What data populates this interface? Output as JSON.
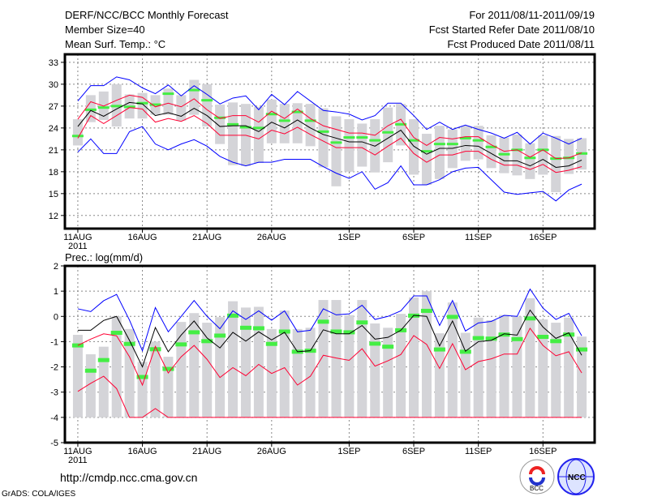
{
  "header": {
    "title": "DERF/NCC/BCC Monthly Forecast",
    "member_size": "Member Size=40",
    "variable": "Mean Surf. Temp.: °C",
    "period": "For 2011/08/11-2011/09/19",
    "started": "Fcst Started Refer Date 2011/08/10",
    "produced": "Fcst Produced Date 2011/08/11"
  },
  "footer": {
    "url": "http://cmdp.ncc.cma.gov.cn",
    "credit": "GrADS: COLA/IGES",
    "logo_bcc": "BCC",
    "logo_ncc": "NCC"
  },
  "colors": {
    "max_min": "#0000ff",
    "spread": "#ff0033",
    "mean": "#000000",
    "obs": "#44ee44",
    "range": "#d4d4d8"
  },
  "chart_data": [
    {
      "type": "line",
      "title": "Mean Surf. Temp.: °C",
      "x_tick_labels": [
        {
          "day": 0,
          "label": "11AUG"
        },
        {
          "day": 5,
          "label": "16AUG"
        },
        {
          "day": 10,
          "label": "21AUG"
        },
        {
          "day": 15,
          "label": "26AUG"
        },
        {
          "day": 21,
          "label": "1SEP"
        },
        {
          "day": 26,
          "label": "6SEP"
        },
        {
          "day": 31,
          "label": "11SEP"
        },
        {
          "day": 36,
          "label": "16SEP"
        }
      ],
      "year_label": "2011",
      "xlim": [
        -1,
        40
      ],
      "ylim": [
        10.2,
        34.1
      ],
      "y_ticks": [
        33,
        30,
        27,
        24,
        21,
        18,
        15,
        12
      ],
      "grid": true,
      "series": {
        "max": [
          27.7,
          29.8,
          29.8,
          31.0,
          30.6,
          29.5,
          28.7,
          29.9,
          28.4,
          29.8,
          28.6,
          27.3,
          28.1,
          28.4,
          26.5,
          28.6,
          27.2,
          29.0,
          27.7,
          26.4,
          26.2,
          25.9,
          25.1,
          25.7,
          27.4,
          27.4,
          25.7,
          23.8,
          24.8,
          23.8,
          24.4,
          23.8,
          23.3,
          22.6,
          23.4,
          21.8,
          23.3,
          22.6,
          21.8,
          22.6
        ],
        "upper": [
          25.2,
          27.6,
          27.0,
          27.8,
          28.5,
          28.2,
          26.9,
          27.4,
          26.9,
          28.0,
          26.5,
          25.3,
          25.7,
          25.7,
          24.8,
          26.3,
          25.3,
          26.6,
          25.3,
          24.3,
          23.8,
          23.3,
          23.3,
          23.0,
          24.3,
          25.2,
          22.7,
          21.6,
          22.7,
          22.5,
          22.8,
          22.8,
          21.7,
          20.8,
          21.0,
          20.0,
          21.0,
          19.8,
          19.9,
          20.6
        ],
        "mean": [
          24.2,
          26.4,
          25.6,
          26.6,
          27.5,
          27.3,
          25.7,
          26.1,
          25.6,
          26.7,
          25.7,
          24.2,
          24.3,
          24.3,
          23.5,
          24.8,
          24.0,
          25.1,
          24.0,
          23.1,
          22.6,
          22.1,
          22.1,
          21.5,
          22.6,
          23.7,
          21.5,
          20.4,
          21.2,
          21.2,
          21.6,
          21.5,
          20.5,
          19.5,
          19.5,
          18.8,
          19.7,
          18.6,
          18.8,
          19.6
        ],
        "lower": [
          22.6,
          25.7,
          24.6,
          25.7,
          26.8,
          26.6,
          24.8,
          25.3,
          24.9,
          25.7,
          24.6,
          23.0,
          23.0,
          23.0,
          22.5,
          23.7,
          23.2,
          24.1,
          23.1,
          22.2,
          21.3,
          21.3,
          21.3,
          20.3,
          21.5,
          22.6,
          20.5,
          19.3,
          20.3,
          20.3,
          20.8,
          20.8,
          19.7,
          18.9,
          18.9,
          18.3,
          19.0,
          17.9,
          18.2,
          18.7
        ],
        "min": [
          20.7,
          22.5,
          20.5,
          20.5,
          23.5,
          24.2,
          21.8,
          21.0,
          21.8,
          22.4,
          21.5,
          20.1,
          19.3,
          18.8,
          19.3,
          19.3,
          19.7,
          19.7,
          19.7,
          18.7,
          17.8,
          17.1,
          18.0,
          15.6,
          16.5,
          18.8,
          16.2,
          16.2,
          16.9,
          18.0,
          18.5,
          18.6,
          16.9,
          15.2,
          14.9,
          15.1,
          15.3,
          14.0,
          15.5,
          16.3
        ],
        "obs": [
          22.9,
          26.5,
          26.8,
          27.0,
          26.9,
          27.4,
          27.2,
          28.7,
          null,
          29.2,
          27.8,
          25.4,
          24.5,
          24.1,
          24.0,
          25.9,
          25.0,
          26.2,
          25.0,
          23.5,
          22.0,
          22.7,
          22.7,
          22.3,
          23.4,
          24.5,
          22.3,
          20.8,
          21.8,
          21.8,
          22.6,
          22.3,
          21.4,
          20.4,
          21.0,
          19.9,
          21.0,
          19.8,
          19.9,
          20.5
        ],
        "range_low": [
          21.6,
          24.8,
          25.1,
          24.2,
          25.3,
          25.3,
          25.8,
          25.8,
          25.0,
          25.8,
          24.2,
          21.8,
          18.9,
          18.8,
          19.2,
          21.9,
          21.9,
          21.9,
          21.5,
          18.6,
          16.0,
          18.0,
          18.7,
          17.9,
          19.3,
          21.6,
          17.6,
          16.2,
          17.0,
          18.5,
          19.5,
          19.7,
          18.5,
          17.8,
          17.5,
          17.0,
          17.6,
          15.2,
          17.7,
          18.3
        ],
        "range_high": [
          25.2,
          28.5,
          29.0,
          30.0,
          28.6,
          28.8,
          28.5,
          29.4,
          28.5,
          30.6,
          30.0,
          27.2,
          27.5,
          27.3,
          26.9,
          27.9,
          27.3,
          27.4,
          27.3,
          26.7,
          25.6,
          25.2,
          24.6,
          25.2,
          26.8,
          27.3,
          25.2,
          23.2,
          24.3,
          23.8,
          24.3,
          24.3,
          23.0,
          22.7,
          23.1,
          21.9,
          23.0,
          22.9,
          22.5,
          22.6
        ]
      }
    },
    {
      "type": "line",
      "title": "Prec.: log(mm/d)",
      "xlim": [
        -1,
        40
      ],
      "ylim": [
        -5,
        2
      ],
      "y_ticks": [
        2,
        1,
        0,
        -1,
        -2,
        -3,
        -4,
        -5
      ],
      "grid": true,
      "series": {
        "max": [
          0.3,
          0.19,
          0.62,
          0.87,
          -0.15,
          -1.36,
          0.35,
          -0.61,
          0.0,
          0.63,
          0.0,
          -0.49,
          0.22,
          -0.12,
          0.22,
          -0.15,
          0.22,
          -0.61,
          -0.55,
          0.3,
          0.06,
          0.1,
          0.44,
          -0.12,
          0.0,
          0.22,
          0.81,
          0.81,
          -0.36,
          0.63,
          -0.58,
          -0.26,
          -0.2,
          0.04,
          0.0,
          1.08,
          0.33,
          -0.12,
          0.12,
          -0.77
        ],
        "upper": [
          -1.15,
          -0.9,
          -0.69,
          -0.77,
          -1.6,
          -2.72,
          -1.19,
          -2.24,
          -1.6,
          -1.15,
          -1.7,
          -2.42,
          -2.03,
          -2.35,
          -1.9,
          -2.26,
          -2.03,
          -2.72,
          -2.37,
          -1.54,
          -1.65,
          -1.74,
          -1.28,
          -1.97,
          -1.76,
          -1.51,
          -0.76,
          -1.11,
          -2.06,
          -1.08,
          -2.11,
          -1.79,
          -1.68,
          -1.49,
          -1.49,
          -0.47,
          -1.15,
          -1.56,
          -1.4,
          -2.24
        ],
        "mean": [
          -0.55,
          -0.55,
          -0.16,
          0.0,
          -0.95,
          -2.0,
          -0.44,
          -1.4,
          -0.74,
          -0.18,
          -0.85,
          -1.25,
          -0.63,
          -0.98,
          -0.61,
          -0.93,
          -0.63,
          -1.4,
          -1.36,
          -0.53,
          -0.69,
          -0.69,
          -0.36,
          -0.9,
          -0.83,
          -0.55,
          0.04,
          0.0,
          -1.17,
          -0.18,
          -1.38,
          -1.0,
          -0.95,
          -0.69,
          -0.74,
          0.25,
          -0.42,
          -0.87,
          -0.65,
          -1.54
        ],
        "lower": [
          -2.97,
          -2.65,
          -2.37,
          -2.86,
          -4,
          -4,
          -3.65,
          -4,
          -4,
          -4,
          -4,
          -4,
          -4,
          -4,
          -4,
          -4,
          -4,
          -4,
          -4,
          -4,
          -4,
          -4,
          -4,
          -4,
          -4,
          -4,
          -4,
          -4,
          -4,
          -4,
          -4,
          -4,
          -4,
          -4,
          -4,
          -4,
          -4,
          -4,
          -4,
          -4
        ],
        "obs": [
          -1.15,
          -2.15,
          -1.73,
          -0.65,
          -1.09,
          -2.4,
          -1.3,
          -2.08,
          -1.11,
          -0.63,
          -0.98,
          -0.76,
          0.03,
          -0.45,
          -0.47,
          -1.09,
          -0.6,
          -1.4,
          -1.36,
          -0.21,
          -0.6,
          -0.63,
          -0.24,
          -1.08,
          -1.2,
          -0.55,
          0.03,
          0.22,
          -1.31,
          -0.02,
          -1.4,
          -0.86,
          -0.88,
          -0.72,
          -0.9,
          -0.08,
          -0.81,
          -0.98,
          -0.72,
          -1.31
        ],
        "range_high": [
          -0.73,
          -1.5,
          -1.2,
          0.0,
          -0.5,
          -1.8,
          -1.0,
          -1.6,
          -0.22,
          0.13,
          -0.25,
          -0.03,
          0.6,
          0.35,
          0.38,
          -0.5,
          0.23,
          -0.5,
          -0.45,
          0.65,
          0.65,
          0.05,
          0.65,
          -0.28,
          -0.45,
          0.1,
          0.75,
          1.0,
          -0.67,
          0.55,
          -0.65,
          -0.05,
          -0.15,
          0.06,
          0.0,
          0.72,
          -0.12,
          -0.25,
          -0.05,
          -0.8
        ],
        "range_low": -4
      }
    }
  ]
}
